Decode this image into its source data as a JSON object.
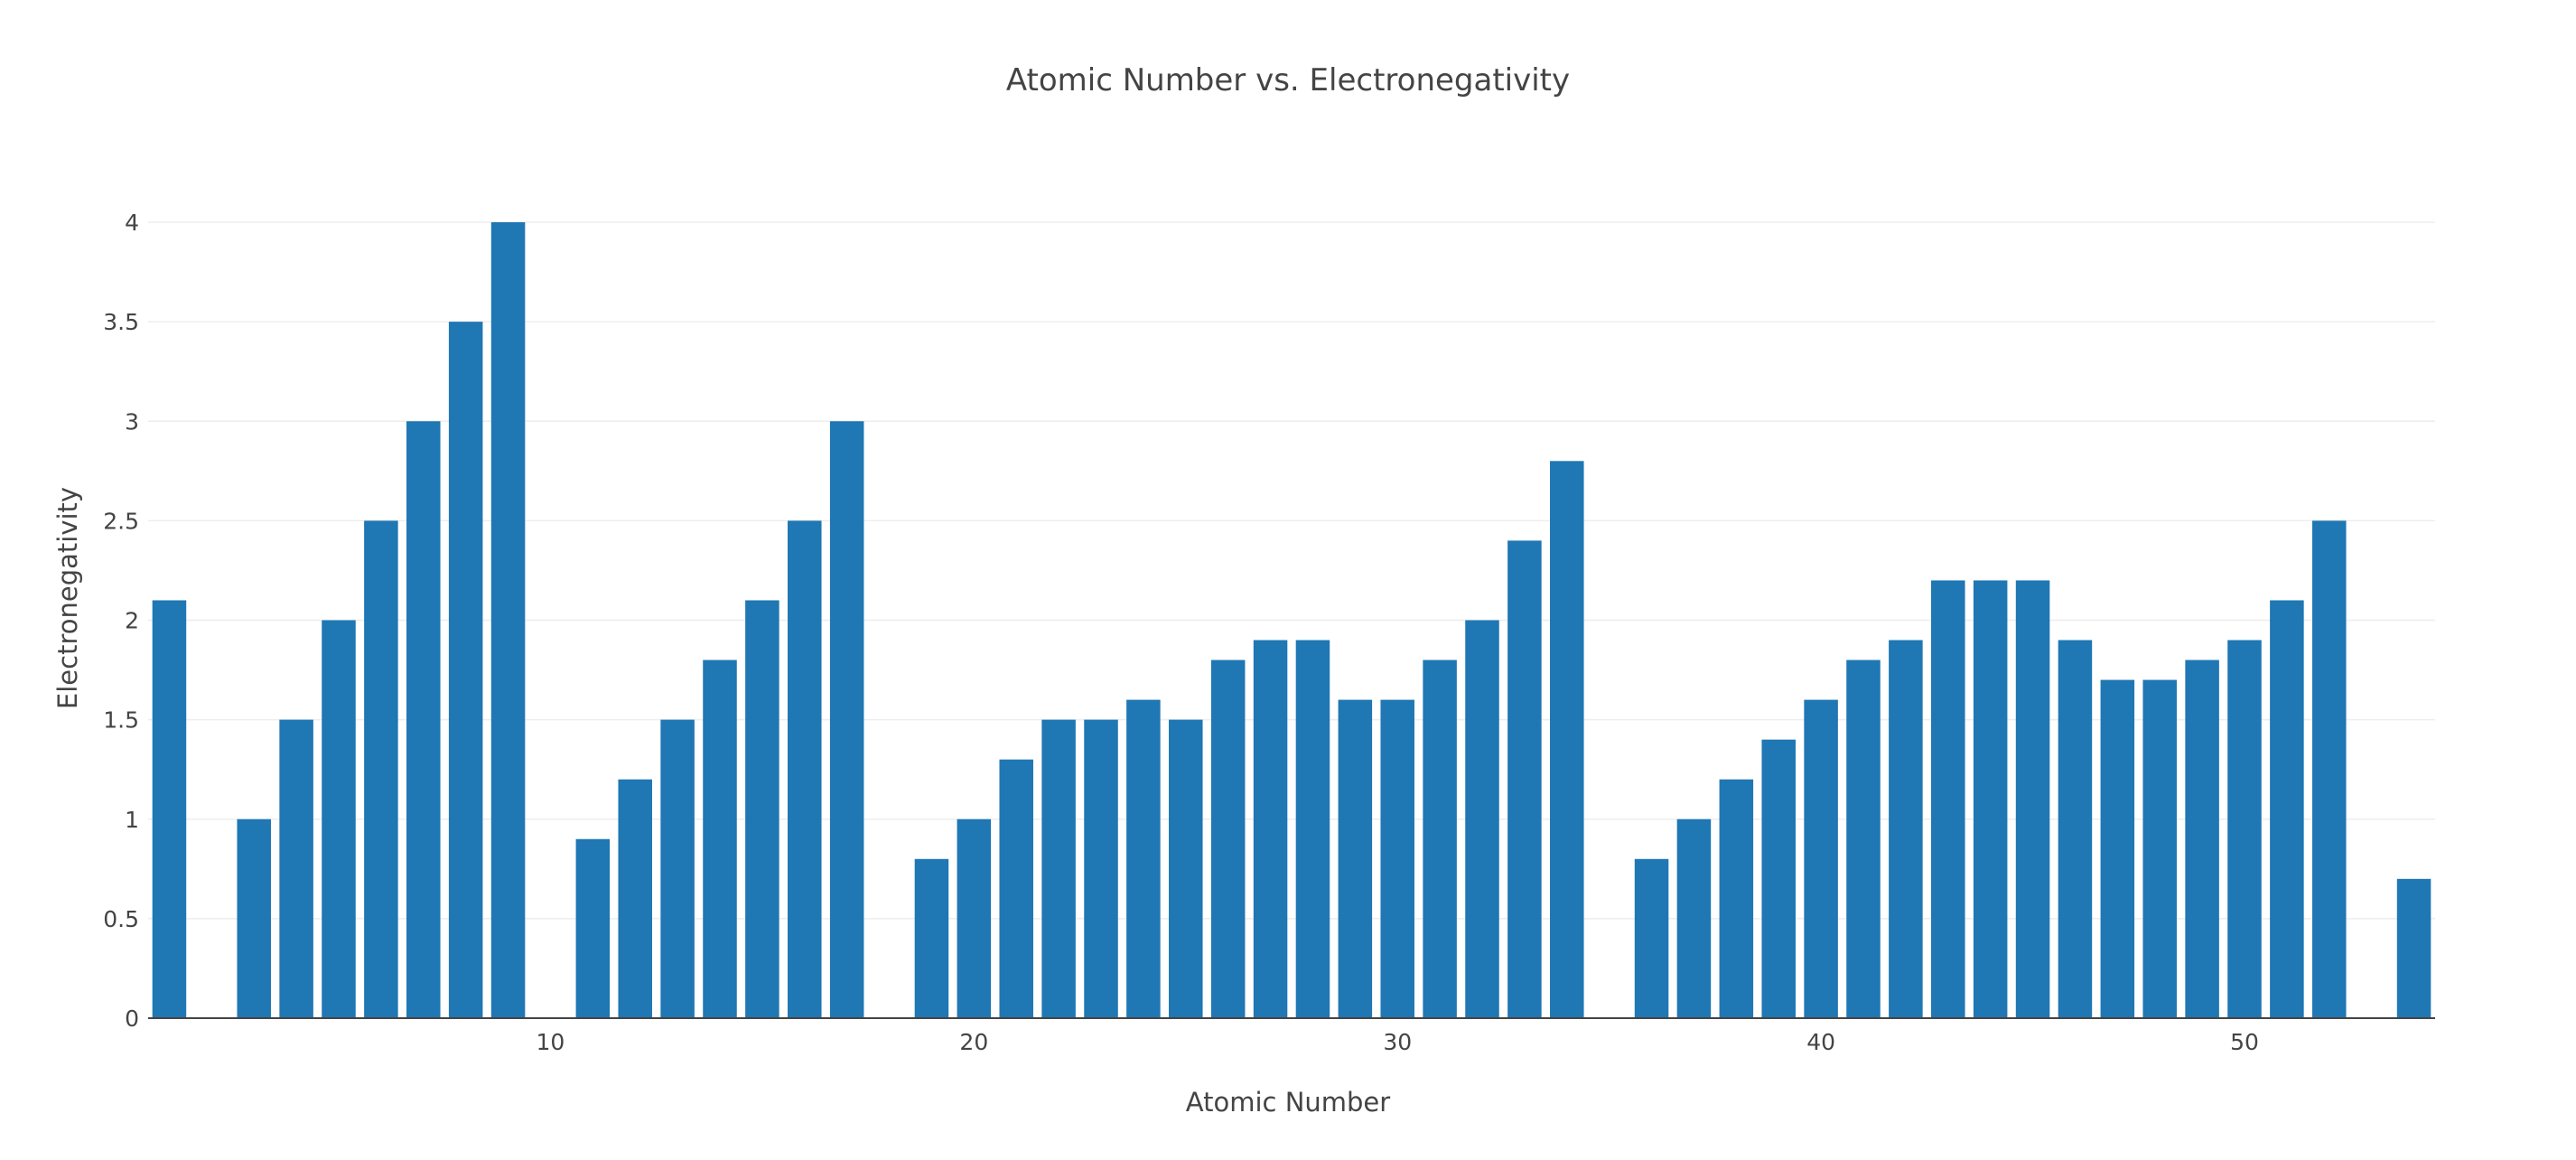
{
  "chart_data": {
    "type": "bar",
    "title": "Atomic Number vs. Electronegativity",
    "xlabel": "Atomic Number",
    "ylabel": "Electronegativity",
    "x": [
      1,
      3,
      4,
      5,
      6,
      7,
      8,
      9,
      11,
      12,
      13,
      14,
      15,
      16,
      17,
      19,
      20,
      21,
      22,
      23,
      24,
      25,
      26,
      27,
      28,
      29,
      30,
      31,
      32,
      33,
      34,
      36,
      37,
      38,
      39,
      40,
      41,
      42,
      43,
      44,
      45,
      46,
      47,
      48,
      49,
      50,
      51,
      52,
      54
    ],
    "values": [
      2.1,
      1.0,
      1.5,
      2.0,
      2.5,
      3.0,
      3.5,
      4.0,
      0.9,
      1.2,
      1.5,
      1.8,
      2.1,
      2.5,
      3.0,
      0.8,
      1.0,
      1.3,
      1.5,
      1.5,
      1.6,
      1.5,
      1.8,
      1.9,
      1.9,
      1.6,
      1.6,
      1.8,
      2.0,
      2.4,
      2.8,
      0.8,
      1.0,
      1.2,
      1.4,
      1.6,
      1.8,
      1.9,
      2.2,
      2.2,
      2.2,
      1.9,
      1.7,
      1.7,
      1.8,
      1.9,
      2.1,
      2.5,
      0.7
    ],
    "xlim": [
      0.5,
      54.5
    ],
    "ylim": [
      0,
      4
    ],
    "x_ticks": [
      10,
      20,
      30,
      40,
      50
    ],
    "x_tick_labels": [
      "10",
      "20",
      "30",
      "40",
      "50"
    ],
    "y_ticks": [
      0,
      0.5,
      1,
      1.5,
      2,
      2.5,
      3,
      3.5,
      4
    ],
    "y_tick_labels": [
      "0",
      "0.5",
      "1",
      "1.5",
      "2",
      "2.5",
      "3",
      "3.5",
      "4"
    ],
    "grid": true,
    "bar_color": "#1f77b4"
  }
}
